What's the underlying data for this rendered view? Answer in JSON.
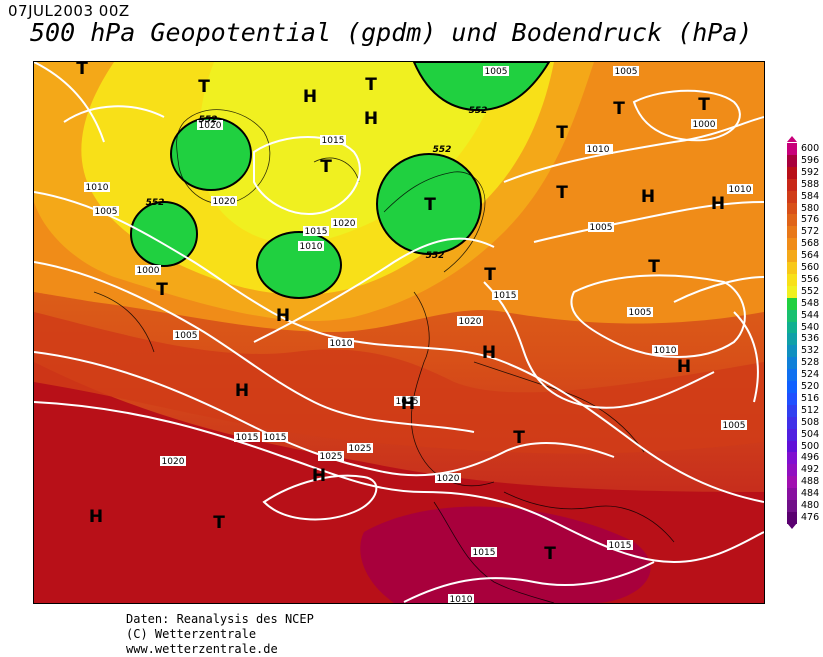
{
  "header": {
    "date": "07JUL2003 00Z",
    "title": "500 hPa Geopotential (gpdm) und Bodendruck (hPa)"
  },
  "legend": {
    "values": [
      "600",
      "596",
      "592",
      "588",
      "584",
      "580",
      "576",
      "572",
      "568",
      "564",
      "560",
      "556",
      "552",
      "548",
      "544",
      "540",
      "536",
      "532",
      "528",
      "524",
      "520",
      "516",
      "512",
      "508",
      "504",
      "500",
      "496",
      "492",
      "488",
      "484",
      "480",
      "476"
    ],
    "colors": [
      "#c8007a",
      "#a8003c",
      "#b81018",
      "#c82818",
      "#d03c18",
      "#d85018",
      "#e06418",
      "#e87818",
      "#f08c18",
      "#f4a818",
      "#f8c818",
      "#f8e018",
      "#f0f020",
      "#20d040",
      "#18c070",
      "#10b090",
      "#10a0a8",
      "#1090c0",
      "#1080d8",
      "#1070f0",
      "#1060ff",
      "#2050ff",
      "#3040f0",
      "#4030e8",
      "#5020e0",
      "#6010d8",
      "#8010d0",
      "#9010c0",
      "#a010b0",
      "#8810a0",
      "#701088",
      "#5a0070"
    ]
  },
  "credits": {
    "line1": "Daten: Reanalysis des NCEP",
    "line2": "(C) Wetterzentrale",
    "line3": "www.wetterzentrale.de"
  },
  "map": {
    "pressure_centers": [
      {
        "kind": "T"
      },
      {
        "kind": "T"
      },
      {
        "kind": "T"
      },
      {
        "kind": "H"
      },
      {
        "kind": "H"
      },
      {
        "kind": "T"
      },
      {
        "kind": "T"
      },
      {
        "kind": "T"
      },
      {
        "kind": "T"
      },
      {
        "kind": "T"
      },
      {
        "kind": "T"
      },
      {
        "kind": "H"
      },
      {
        "kind": "T"
      },
      {
        "kind": "T"
      },
      {
        "kind": "H"
      },
      {
        "kind": "H"
      },
      {
        "kind": "T"
      },
      {
        "kind": "H"
      },
      {
        "kind": "H"
      },
      {
        "kind": "H"
      },
      {
        "kind": "H"
      },
      {
        "kind": "T"
      },
      {
        "kind": "H"
      },
      {
        "kind": "H"
      },
      {
        "kind": "T"
      },
      {
        "kind": "T"
      }
    ],
    "isobar_labels": [
      "1005",
      "1005",
      "1000",
      "1020",
      "1015",
      "1020",
      "1020",
      "1015",
      "1010",
      "1010",
      "1005",
      "1000",
      "1005",
      "1010",
      "1015",
      "1020",
      "1005",
      "1005",
      "1005",
      "1010",
      "1015",
      "1020",
      "1025",
      "1025",
      "1025",
      "1020",
      "1015",
      "1015",
      "1010",
      "1010",
      "1015",
      "1020",
      "1005",
      "1010"
    ],
    "contour_labels": [
      "552",
      "552",
      "552",
      "552",
      "552"
    ]
  }
}
